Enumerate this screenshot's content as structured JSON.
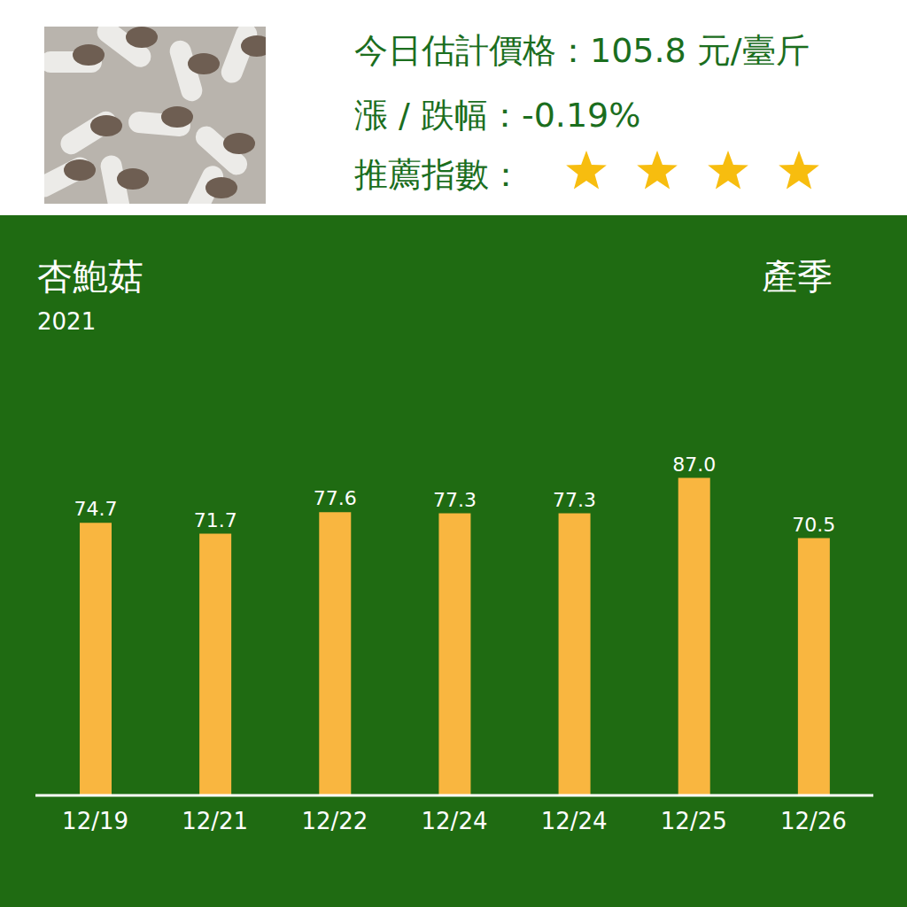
{
  "header": {
    "price_text": "今日估計價格：105.8 元/臺斤",
    "change_text": "漲 / 跌幅：-0.19%",
    "rating_label": "推薦指數：",
    "rating": 4
  },
  "chart_data": {
    "type": "bar",
    "title": "杏鮑菇",
    "subtitle": "2021",
    "annotation": "產季",
    "categories": [
      "12/19",
      "12/21",
      "12/22",
      "12/24",
      "12/24",
      "12/25",
      "12/26"
    ],
    "values": [
      74.7,
      71.7,
      77.6,
      77.3,
      77.3,
      87.0,
      70.5
    ],
    "color": "#f9b640",
    "ylim": [
      0,
      100
    ],
    "data_labels": true,
    "tick_labels": "x",
    "grid": false
  }
}
